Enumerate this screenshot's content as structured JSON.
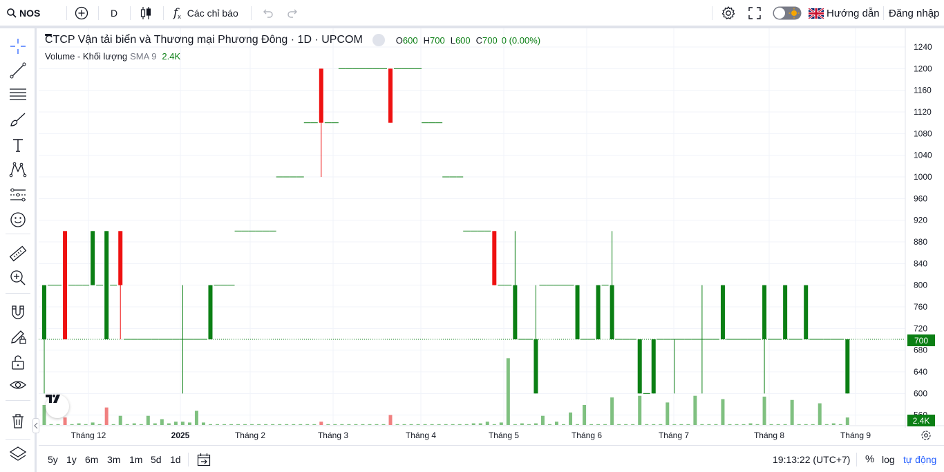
{
  "topbar": {
    "symbol": "NOS",
    "interval": "D",
    "indicators_label": "Các chỉ báo",
    "guide_label": "Hướng dẫn",
    "login_label": "Đăng nhập"
  },
  "legend": {
    "title": "CTCP Vận tải biển và Thương mại Phương Đông · 1D · UPCOM",
    "o_label": "O",
    "o_value": "600",
    "h_label": "H",
    "h_value": "700",
    "l_label": "L",
    "l_value": "600",
    "c_label": "C",
    "c_value": "700",
    "change": "0 (0.00%)",
    "volume_name": "Volume - Khối lượng",
    "sma_label": "SMA 9",
    "sma_value": "2.4K"
  },
  "price_axis": {
    "ticks": [
      "1240",
      "1200",
      "1160",
      "1120",
      "1080",
      "1040",
      "1000",
      "960",
      "920",
      "880",
      "840",
      "800",
      "760",
      "720",
      "680",
      "640",
      "600",
      "560"
    ],
    "last_price_label": "700",
    "volume_label": "2.4K"
  },
  "time_axis": {
    "labels": [
      "Tháng 12",
      "2025",
      "Tháng 2",
      "Tháng 3",
      "Tháng 4",
      "Tháng 5",
      "Tháng 6",
      "Tháng 7",
      "Tháng 8",
      "Tháng 9"
    ]
  },
  "bottombar": {
    "ranges": [
      "5y",
      "1y",
      "6m",
      "3m",
      "1m",
      "5d",
      "1d"
    ],
    "clock": "19:13:22 (UTC+7)",
    "percent": "%",
    "log": "log",
    "auto": "tự động"
  },
  "colors": {
    "up": "#0b7f14",
    "down": "#ee1111",
    "vol_up": "#7fc080",
    "vol_down": "#f08080",
    "accent": "#2962ff"
  },
  "chart_data": {
    "type": "candlestick",
    "y_range": [
      540,
      1260
    ],
    "y_ticks": [
      1240,
      1200,
      1160,
      1120,
      1080,
      1040,
      1000,
      960,
      920,
      880,
      840,
      800,
      760,
      720,
      680,
      640,
      600,
      560
    ],
    "last_price": 700,
    "candles": [
      {
        "i": 0,
        "o": 700,
        "h": 800,
        "l": 600,
        "c": 800
      },
      {
        "i": 1,
        "o": 800,
        "h": 800,
        "l": 800,
        "c": 800
      },
      {
        "i": 2,
        "o": 800,
        "h": 800,
        "l": 800,
        "c": 800
      },
      {
        "i": 3,
        "o": 900,
        "h": 900,
        "l": 700,
        "c": 700
      },
      {
        "i": 4,
        "o": 800,
        "h": 800,
        "l": 800,
        "c": 800
      },
      {
        "i": 5,
        "o": 800,
        "h": 800,
        "l": 800,
        "c": 800
      },
      {
        "i": 6,
        "o": 800,
        "h": 800,
        "l": 800,
        "c": 800
      },
      {
        "i": 7,
        "o": 800,
        "h": 900,
        "l": 800,
        "c": 900
      },
      {
        "i": 8,
        "o": 800,
        "h": 800,
        "l": 800,
        "c": 800
      },
      {
        "i": 9,
        "o": 700,
        "h": 900,
        "l": 700,
        "c": 900
      },
      {
        "i": 10,
        "o": 800,
        "h": 800,
        "l": 800,
        "c": 800
      },
      {
        "i": 11,
        "o": 900,
        "h": 900,
        "l": 700,
        "c": 800
      },
      {
        "i": 12,
        "o": 700,
        "h": 700,
        "l": 700,
        "c": 700
      },
      {
        "i": 13,
        "o": 700,
        "h": 700,
        "l": 700,
        "c": 700
      },
      {
        "i": 14,
        "o": 700,
        "h": 700,
        "l": 700,
        "c": 700
      },
      {
        "i": 15,
        "o": 700,
        "h": 700,
        "l": 700,
        "c": 700
      },
      {
        "i": 16,
        "o": 700,
        "h": 700,
        "l": 700,
        "c": 700
      },
      {
        "i": 17,
        "o": 700,
        "h": 700,
        "l": 700,
        "c": 700
      },
      {
        "i": 18,
        "o": 700,
        "h": 700,
        "l": 700,
        "c": 700
      },
      {
        "i": 19,
        "o": 700,
        "h": 700,
        "l": 700,
        "c": 700
      },
      {
        "i": 20,
        "o": 700,
        "h": 800,
        "l": 600,
        "c": 700
      },
      {
        "i": 21,
        "o": 700,
        "h": 700,
        "l": 700,
        "c": 700
      },
      {
        "i": 22,
        "o": 700,
        "h": 700,
        "l": 700,
        "c": 700
      },
      {
        "i": 23,
        "o": 700,
        "h": 700,
        "l": 700,
        "c": 700
      },
      {
        "i": 24,
        "o": 700,
        "h": 800,
        "l": 700,
        "c": 800
      },
      {
        "i": 25,
        "o": 800,
        "h": 800,
        "l": 800,
        "c": 800
      },
      {
        "i": 26,
        "o": 800,
        "h": 800,
        "l": 800,
        "c": 800
      },
      {
        "i": 27,
        "o": 800,
        "h": 800,
        "l": 800,
        "c": 800
      },
      {
        "i": 28,
        "o": 900,
        "h": 900,
        "l": 900,
        "c": 900
      },
      {
        "i": 29,
        "o": 900,
        "h": 900,
        "l": 900,
        "c": 900
      },
      {
        "i": 30,
        "o": 900,
        "h": 900,
        "l": 900,
        "c": 900
      },
      {
        "i": 31,
        "o": 900,
        "h": 900,
        "l": 900,
        "c": 900
      },
      {
        "i": 32,
        "o": 900,
        "h": 900,
        "l": 900,
        "c": 900
      },
      {
        "i": 33,
        "o": 900,
        "h": 900,
        "l": 900,
        "c": 900
      },
      {
        "i": 34,
        "o": 1000,
        "h": 1000,
        "l": 1000,
        "c": 1000
      },
      {
        "i": 35,
        "o": 1000,
        "h": 1000,
        "l": 1000,
        "c": 1000
      },
      {
        "i": 36,
        "o": 1000,
        "h": 1000,
        "l": 1000,
        "c": 1000
      },
      {
        "i": 37,
        "o": 1000,
        "h": 1000,
        "l": 1000,
        "c": 1000
      },
      {
        "i": 38,
        "o": 1100,
        "h": 1100,
        "l": 1100,
        "c": 1100
      },
      {
        "i": 39,
        "o": 1100,
        "h": 1100,
        "l": 1100,
        "c": 1100
      },
      {
        "i": 40,
        "o": 1200,
        "h": 1200,
        "l": 1000,
        "c": 1100
      },
      {
        "i": 41,
        "o": 1100,
        "h": 1100,
        "l": 1100,
        "c": 1100
      },
      {
        "i": 42,
        "o": 1100,
        "h": 1100,
        "l": 1100,
        "c": 1100
      },
      {
        "i": 43,
        "o": 1200,
        "h": 1200,
        "l": 1200,
        "c": 1200
      },
      {
        "i": 44,
        "o": 1200,
        "h": 1200,
        "l": 1200,
        "c": 1200
      },
      {
        "i": 45,
        "o": 1200,
        "h": 1200,
        "l": 1200,
        "c": 1200
      },
      {
        "i": 46,
        "o": 1200,
        "h": 1200,
        "l": 1200,
        "c": 1200
      },
      {
        "i": 47,
        "o": 1200,
        "h": 1200,
        "l": 1200,
        "c": 1200
      },
      {
        "i": 48,
        "o": 1200,
        "h": 1200,
        "l": 1200,
        "c": 1200
      },
      {
        "i": 49,
        "o": 1200,
        "h": 1200,
        "l": 1200,
        "c": 1200
      },
      {
        "i": 50,
        "o": 1200,
        "h": 1200,
        "l": 1100,
        "c": 1100
      },
      {
        "i": 51,
        "o": 1200,
        "h": 1200,
        "l": 1200,
        "c": 1200
      },
      {
        "i": 52,
        "o": 1200,
        "h": 1200,
        "l": 1200,
        "c": 1200
      },
      {
        "i": 53,
        "o": 1200,
        "h": 1200,
        "l": 1200,
        "c": 1200
      },
      {
        "i": 54,
        "o": 1200,
        "h": 1200,
        "l": 1200,
        "c": 1200
      },
      {
        "i": 55,
        "o": 1100,
        "h": 1100,
        "l": 1100,
        "c": 1100
      },
      {
        "i": 56,
        "o": 1100,
        "h": 1100,
        "l": 1100,
        "c": 1100
      },
      {
        "i": 57,
        "o": 1100,
        "h": 1100,
        "l": 1100,
        "c": 1100
      },
      {
        "i": 58,
        "o": 1000,
        "h": 1000,
        "l": 1000,
        "c": 1000
      },
      {
        "i": 59,
        "o": 1000,
        "h": 1000,
        "l": 1000,
        "c": 1000
      },
      {
        "i": 60,
        "o": 1000,
        "h": 1000,
        "l": 1000,
        "c": 1000
      },
      {
        "i": 61,
        "o": 900,
        "h": 900,
        "l": 900,
        "c": 900
      },
      {
        "i": 62,
        "o": 900,
        "h": 900,
        "l": 900,
        "c": 900
      },
      {
        "i": 63,
        "o": 900,
        "h": 900,
        "l": 900,
        "c": 900
      },
      {
        "i": 64,
        "o": 900,
        "h": 900,
        "l": 900,
        "c": 900
      },
      {
        "i": 65,
        "o": 900,
        "h": 900,
        "l": 800,
        "c": 800
      },
      {
        "i": 66,
        "o": 800,
        "h": 800,
        "l": 800,
        "c": 800
      },
      {
        "i": 67,
        "o": 800,
        "h": 800,
        "l": 800,
        "c": 800
      },
      {
        "i": 68,
        "o": 700,
        "h": 900,
        "l": 700,
        "c": 800
      },
      {
        "i": 69,
        "o": 700,
        "h": 700,
        "l": 700,
        "c": 700
      },
      {
        "i": 70,
        "o": 700,
        "h": 700,
        "l": 700,
        "c": 700
      },
      {
        "i": 71,
        "o": 600,
        "h": 800,
        "l": 600,
        "c": 700
      },
      {
        "i": 72,
        "o": 800,
        "h": 800,
        "l": 800,
        "c": 800
      },
      {
        "i": 73,
        "o": 800,
        "h": 800,
        "l": 800,
        "c": 800
      },
      {
        "i": 74,
        "o": 800,
        "h": 800,
        "l": 800,
        "c": 800
      },
      {
        "i": 75,
        "o": 800,
        "h": 800,
        "l": 800,
        "c": 800
      },
      {
        "i": 76,
        "o": 800,
        "h": 800,
        "l": 800,
        "c": 800
      },
      {
        "i": 77,
        "o": 700,
        "h": 800,
        "l": 700,
        "c": 800
      },
      {
        "i": 78,
        "o": 700,
        "h": 700,
        "l": 700,
        "c": 700
      },
      {
        "i": 79,
        "o": 700,
        "h": 700,
        "l": 700,
        "c": 700
      },
      {
        "i": 80,
        "o": 700,
        "h": 800,
        "l": 700,
        "c": 800
      },
      {
        "i": 81,
        "o": 800,
        "h": 800,
        "l": 800,
        "c": 800
      },
      {
        "i": 82,
        "o": 700,
        "h": 900,
        "l": 700,
        "c": 800
      },
      {
        "i": 83,
        "o": 700,
        "h": 700,
        "l": 700,
        "c": 700
      },
      {
        "i": 84,
        "o": 700,
        "h": 700,
        "l": 700,
        "c": 700
      },
      {
        "i": 85,
        "o": 700,
        "h": 700,
        "l": 700,
        "c": 700
      },
      {
        "i": 86,
        "o": 600,
        "h": 700,
        "l": 600,
        "c": 700
      },
      {
        "i": 87,
        "o": 600,
        "h": 600,
        "l": 600,
        "c": 600
      },
      {
        "i": 88,
        "o": 600,
        "h": 700,
        "l": 600,
        "c": 700
      },
      {
        "i": 89,
        "o": 700,
        "h": 700,
        "l": 700,
        "c": 700
      },
      {
        "i": 90,
        "o": 700,
        "h": 700,
        "l": 700,
        "c": 700
      },
      {
        "i": 91,
        "o": 700,
        "h": 700,
        "l": 600,
        "c": 700
      },
      {
        "i": 92,
        "o": 700,
        "h": 700,
        "l": 700,
        "c": 700
      },
      {
        "i": 93,
        "o": 700,
        "h": 700,
        "l": 700,
        "c": 700
      },
      {
        "i": 94,
        "o": 700,
        "h": 700,
        "l": 700,
        "c": 700
      },
      {
        "i": 95,
        "o": 700,
        "h": 800,
        "l": 600,
        "c": 700
      },
      {
        "i": 96,
        "o": 700,
        "h": 700,
        "l": 700,
        "c": 700
      },
      {
        "i": 97,
        "o": 700,
        "h": 700,
        "l": 700,
        "c": 700
      },
      {
        "i": 98,
        "o": 700,
        "h": 800,
        "l": 700,
        "c": 800
      },
      {
        "i": 99,
        "o": 700,
        "h": 700,
        "l": 700,
        "c": 700
      },
      {
        "i": 100,
        "o": 700,
        "h": 700,
        "l": 700,
        "c": 700
      },
      {
        "i": 101,
        "o": 700,
        "h": 700,
        "l": 700,
        "c": 700
      },
      {
        "i": 102,
        "o": 700,
        "h": 700,
        "l": 700,
        "c": 700
      },
      {
        "i": 103,
        "o": 700,
        "h": 700,
        "l": 700,
        "c": 700
      },
      {
        "i": 104,
        "o": 700,
        "h": 800,
        "l": 600,
        "c": 800
      },
      {
        "i": 105,
        "o": 700,
        "h": 700,
        "l": 700,
        "c": 700
      },
      {
        "i": 106,
        "o": 700,
        "h": 700,
        "l": 700,
        "c": 700
      },
      {
        "i": 107,
        "o": 700,
        "h": 800,
        "l": 700,
        "c": 800
      },
      {
        "i": 108,
        "o": 700,
        "h": 700,
        "l": 700,
        "c": 700
      },
      {
        "i": 109,
        "o": 700,
        "h": 700,
        "l": 700,
        "c": 700
      },
      {
        "i": 110,
        "o": 700,
        "h": 800,
        "l": 700,
        "c": 800
      },
      {
        "i": 111,
        "o": 700,
        "h": 700,
        "l": 700,
        "c": 700
      },
      {
        "i": 112,
        "o": 700,
        "h": 700,
        "l": 700,
        "c": 700
      },
      {
        "i": 113,
        "o": 700,
        "h": 700,
        "l": 700,
        "c": 700
      },
      {
        "i": 114,
        "o": 700,
        "h": 700,
        "l": 700,
        "c": 700
      },
      {
        "i": 115,
        "o": 700,
        "h": 700,
        "l": 700,
        "c": 700
      },
      {
        "i": 116,
        "o": 600,
        "h": 700,
        "l": 600,
        "c": 700
      }
    ],
    "volume": [
      24,
      1,
      1,
      9,
      1,
      2,
      1,
      3,
      1,
      21,
      1,
      11,
      1,
      2,
      1,
      11,
      2,
      7,
      2,
      4,
      4,
      3,
      17,
      3,
      1,
      1,
      1,
      1,
      1,
      1,
      1,
      1,
      1,
      1,
      1,
      1,
      1,
      1,
      1,
      1,
      4,
      1,
      1,
      1,
      1,
      1,
      1,
      1,
      1,
      1,
      12,
      1,
      1,
      1,
      1,
      1,
      1,
      1,
      1,
      1,
      1,
      1,
      2,
      2,
      4,
      1,
      3,
      80,
      1,
      2,
      1,
      2,
      11,
      1,
      4,
      1,
      15,
      1,
      24,
      1,
      1,
      1,
      33,
      1,
      1,
      1,
      35,
      1,
      1,
      1,
      27,
      1,
      1,
      1,
      35,
      1,
      1,
      1,
      31,
      1,
      1,
      1,
      2,
      1,
      34,
      1,
      1,
      1,
      30,
      1,
      1,
      1,
      26,
      1,
      2,
      1,
      9
    ],
    "volume_colors_down": [
      3,
      9,
      40,
      50
    ],
    "volume_axis_max": 120
  }
}
